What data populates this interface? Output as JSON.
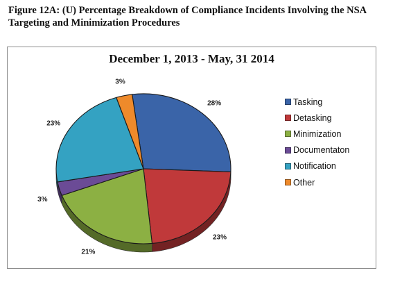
{
  "figure": {
    "caption_line1": "Figure 12A:  (U) Percentage Breakdown of Compliance Incidents Involving the NSA",
    "caption_line2": "Targeting and Minimization Procedures"
  },
  "chart_data": {
    "type": "pie",
    "title": "December 1, 2013 - May, 31 2014",
    "legend_position": "right",
    "slices": [
      {
        "name": "Tasking",
        "value": 28,
        "label": "28%",
        "color": "#3a64a8"
      },
      {
        "name": "Detasking",
        "value": 23,
        "label": "23%",
        "color": "#c0393a"
      },
      {
        "name": "Minimization",
        "value": 21,
        "label": "21%",
        "color": "#8cb043"
      },
      {
        "name": "Documentaton",
        "value": 3,
        "label": "3%",
        "color": "#6b4b96"
      },
      {
        "name": "Notification",
        "value": 23,
        "label": "23%",
        "color": "#34a2c2"
      },
      {
        "name": "Other",
        "value": 3,
        "label": "3%",
        "color": "#ee8a2b"
      }
    ]
  }
}
